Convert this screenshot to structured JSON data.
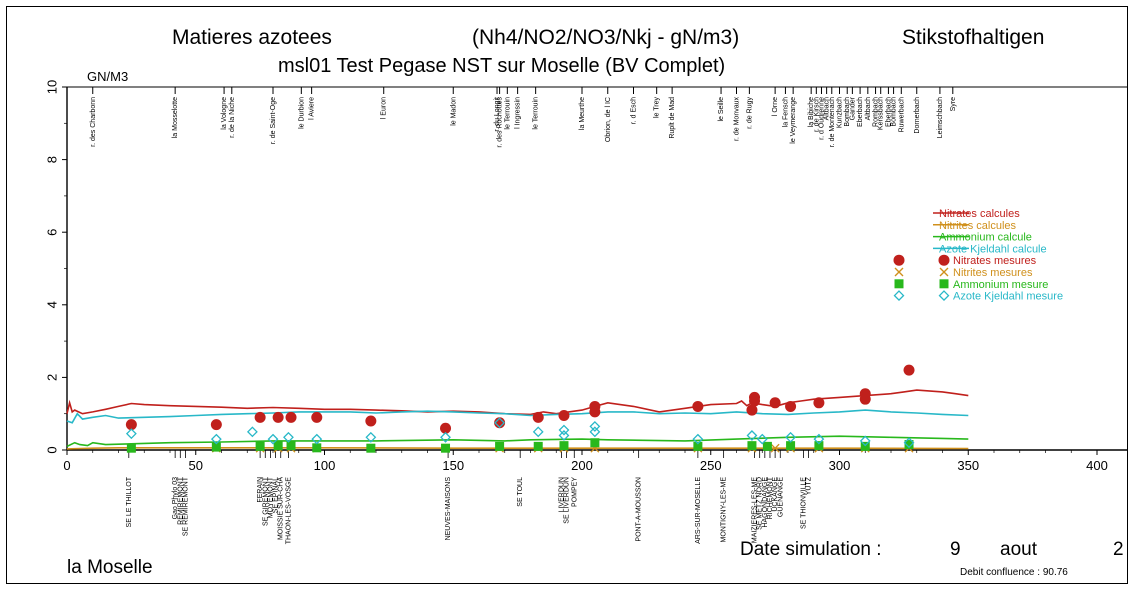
{
  "header": {
    "title_left": "Matieres azotees",
    "title_center": "(Nh4/NO2/NO3/Nkj - gN/m3)",
    "title_right": "Stikstofhaltigen",
    "subtitle": "msl01 Test Pegase NST sur Moselle (BV Complet)",
    "unit": "GN/M3"
  },
  "footer": {
    "river": "la Moselle",
    "date_label": "Date simulation :",
    "date_day": "9",
    "date_month": "aout",
    "date_year": "2",
    "debit": "Debit confluence : 90.76"
  },
  "chart_data": {
    "type": "line",
    "xlim": [
      0,
      400
    ],
    "ylim": [
      0,
      10
    ],
    "x_ticks": [
      "0",
      "50",
      "100",
      "150",
      "200",
      "250",
      "300",
      "350",
      "400"
    ],
    "y_ticks": [
      "0",
      "2",
      "4",
      "6",
      "8",
      "10"
    ],
    "tributaries": [
      {
        "x": 10,
        "label": "r. des Charbonn"
      },
      {
        "x": 42,
        "label": "la Mosselotte"
      },
      {
        "x": 61,
        "label": "la Vologne"
      },
      {
        "x": 64,
        "label": "r. de la Niche"
      },
      {
        "x": 80,
        "label": "r. de Saint-Oge"
      },
      {
        "x": 91,
        "label": "le Durbion"
      },
      {
        "x": 95,
        "label": "l Aviere"
      },
      {
        "x": 123,
        "label": "l Euron"
      },
      {
        "x": 150,
        "label": "le Madon"
      },
      {
        "x": 167,
        "label": "r. du Longit"
      },
      {
        "x": 168,
        "label": "r. des Rochottes"
      },
      {
        "x": 171,
        "label": "le Terrouin"
      },
      {
        "x": 175,
        "label": "l Ingressin"
      },
      {
        "x": 182,
        "label": "le Terrouin"
      },
      {
        "x": 200,
        "label": "la Meurthe"
      },
      {
        "x": 210,
        "label": "Obrion, de l IC"
      },
      {
        "x": 220,
        "label": "r. d Esch"
      },
      {
        "x": 229,
        "label": "le Trey"
      },
      {
        "x": 235,
        "label": "Ruplt de Mad"
      },
      {
        "x": 254,
        "label": "le Seille"
      },
      {
        "x": 260,
        "label": "r. de Monvaux"
      },
      {
        "x": 265,
        "label": "r. de Rugy"
      },
      {
        "x": 275,
        "label": "l Orne"
      },
      {
        "x": 279,
        "label": "la Fensch"
      },
      {
        "x": 282,
        "label": "le Veymerange"
      },
      {
        "x": 289,
        "label": "la Bibiche"
      },
      {
        "x": 291,
        "label": "r. de Kirsch"
      },
      {
        "x": 293,
        "label": "r. d Oudrenne"
      },
      {
        "x": 295,
        "label": "Altbach"
      },
      {
        "x": 297,
        "label": "r. de Montenach"
      },
      {
        "x": 300,
        "label": "Kunzbach"
      },
      {
        "x": 303,
        "label": "Bombach"
      },
      {
        "x": 305,
        "label": "Gander"
      },
      {
        "x": 308,
        "label": "Eberbach"
      },
      {
        "x": 311,
        "label": "Altbach"
      },
      {
        "x": 314,
        "label": "Rombach"
      },
      {
        "x": 316,
        "label": "Kerssbach"
      },
      {
        "x": 319,
        "label": "Eberbach"
      },
      {
        "x": 321,
        "label": "Bombach"
      },
      {
        "x": 324,
        "label": "Ruwerbach"
      },
      {
        "x": 330,
        "label": "Dornerbach"
      },
      {
        "x": 339,
        "label": "Leimschbach"
      },
      {
        "x": 344,
        "label": "Syre"
      }
    ],
    "stations": [
      {
        "x": 24,
        "label": "SE LE THILLOT"
      },
      {
        "x": 42,
        "label": "Gao Phylo 03"
      },
      {
        "x": 44,
        "label": "REMIREMONT"
      },
      {
        "x": 46,
        "label": "SE REMIREMONT"
      },
      {
        "x": 75,
        "label": "FERAIN"
      },
      {
        "x": 77,
        "label": "SE GIREMONT"
      },
      {
        "x": 79,
        "label": "MOYEMONT"
      },
      {
        "x": 81,
        "label": "SE EPINAL"
      },
      {
        "x": 83,
        "label": "MOISSIE SUR-CHA"
      },
      {
        "x": 86,
        "label": "THAON-LES-VOSGE"
      },
      {
        "x": 148,
        "label": "NEUVES-MAISONS"
      },
      {
        "x": 176,
        "label": "SE TOUL"
      },
      {
        "x": 192,
        "label": "LIVERDUN"
      },
      {
        "x": 194,
        "label": "SE LIVERDUN"
      },
      {
        "x": 197,
        "label": "POMPEY"
      },
      {
        "x": 222,
        "label": "PONT-A-MOUSSON"
      },
      {
        "x": 245,
        "label": "ARS-SUR-MOSELLE"
      },
      {
        "x": 255,
        "label": "MONTIGNY-LES-ME"
      },
      {
        "x": 267,
        "label": "MAIZIERES-LES-ME"
      },
      {
        "x": 269,
        "label": "SE METZ NORD"
      },
      {
        "x": 271,
        "label": "HAGONDANGE"
      },
      {
        "x": 273,
        "label": "RICHEMONT"
      },
      {
        "x": 275,
        "label": "UCKANGE"
      },
      {
        "x": 277,
        "label": "GUENANGE"
      },
      {
        "x": 286,
        "label": "SE THIONVILLE"
      },
      {
        "x": 288,
        "label": "YUTZ"
      }
    ],
    "series": [
      {
        "name": "Nitrates calcules",
        "color": "#c0201c",
        "x": [
          0,
          1,
          2,
          3,
          6,
          10,
          15,
          20,
          25,
          30,
          40,
          50,
          60,
          70,
          80,
          90,
          100,
          110,
          120,
          130,
          140,
          150,
          160,
          170,
          180,
          185,
          190,
          200,
          205,
          210,
          220,
          230,
          240,
          250,
          260,
          262,
          264,
          266,
          270,
          275,
          280,
          285,
          290,
          300,
          310,
          320,
          325,
          330,
          340,
          345,
          350
        ],
        "y": [
          1.0,
          1.3,
          1.05,
          1.1,
          1.0,
          1.05,
          1.12,
          1.2,
          1.28,
          1.25,
          1.22,
          1.2,
          1.18,
          1.15,
          1.17,
          1.15,
          1.12,
          1.12,
          1.1,
          1.08,
          1.05,
          1.07,
          1.05,
          1.0,
          0.98,
          1.05,
          1.0,
          1.1,
          1.2,
          1.3,
          1.2,
          1.05,
          1.15,
          1.25,
          1.28,
          1.35,
          1.22,
          1.3,
          1.25,
          1.2,
          1.3,
          1.35,
          1.4,
          1.45,
          1.5,
          1.55,
          1.6,
          1.65,
          1.6,
          1.55,
          1.5
        ]
      },
      {
        "name": "Nitrites calcules",
        "color": "#d0901c",
        "x": [
          0,
          5,
          10,
          20,
          50,
          100,
          150,
          200,
          250,
          300,
          350
        ],
        "y": [
          0.03,
          0.04,
          0.05,
          0.06,
          0.06,
          0.06,
          0.05,
          0.05,
          0.05,
          0.05,
          0.04
        ]
      },
      {
        "name": "Ammonium calcule",
        "color": "#28b81c",
        "x": [
          0,
          3,
          5,
          8,
          10,
          15,
          20,
          40,
          60,
          80,
          100,
          120,
          150,
          170,
          180,
          200,
          210,
          240,
          260,
          280,
          300,
          320,
          340,
          350
        ],
        "y": [
          0.1,
          0.2,
          0.15,
          0.12,
          0.2,
          0.15,
          0.16,
          0.2,
          0.22,
          0.25,
          0.25,
          0.25,
          0.28,
          0.25,
          0.28,
          0.3,
          0.28,
          0.25,
          0.3,
          0.35,
          0.38,
          0.35,
          0.32,
          0.3
        ]
      },
      {
        "name": "Azote Kjeldahl calcule",
        "color": "#28b8c8",
        "x": [
          0,
          2,
          4,
          6,
          10,
          15,
          20,
          30,
          40,
          50,
          60,
          70,
          80,
          90,
          100,
          110,
          120,
          130,
          140,
          150,
          160,
          170,
          180,
          190,
          200,
          210,
          220,
          230,
          240,
          250,
          260,
          270,
          280,
          290,
          300,
          310,
          320,
          330,
          340,
          350
        ],
        "y": [
          0.8,
          0.75,
          1.0,
          0.85,
          0.9,
          0.95,
          0.88,
          0.9,
          0.92,
          0.95,
          0.98,
          1.0,
          1.02,
          1.05,
          1.05,
          1.05,
          1.02,
          1.05,
          1.07,
          1.05,
          1.02,
          1.0,
          0.95,
          0.98,
          1.0,
          1.05,
          1.05,
          1.0,
          1.02,
          1.0,
          1.05,
          1.0,
          0.98,
          1.02,
          1.05,
          1.1,
          1.05,
          1.02,
          0.98,
          0.95
        ]
      }
    ],
    "measures": [
      {
        "name": "Nitrates mesures",
        "color": "#c0201c",
        "marker": "circle",
        "points": [
          [
            25,
            0.7
          ],
          [
            58,
            0.7
          ],
          [
            75,
            0.9
          ],
          [
            82,
            0.9
          ],
          [
            87,
            0.9
          ],
          [
            97,
            0.9
          ],
          [
            118,
            0.8
          ],
          [
            147,
            0.6
          ],
          [
            168,
            0.75
          ],
          [
            183,
            0.9
          ],
          [
            193,
            0.95
          ],
          [
            205,
            1.2
          ],
          [
            205,
            1.05
          ],
          [
            245,
            1.2
          ],
          [
            266,
            1.1
          ],
          [
            267,
            1.35
          ],
          [
            267,
            1.45
          ],
          [
            275,
            1.3
          ],
          [
            281,
            1.2
          ],
          [
            292,
            1.3
          ],
          [
            310,
            1.4
          ],
          [
            310,
            1.55
          ],
          [
            327,
            2.2
          ]
        ]
      },
      {
        "name": "Nitrites mesures",
        "color": "#d0901c",
        "marker": "x",
        "points": [
          [
            25,
            0.05
          ],
          [
            58,
            0.05
          ],
          [
            75,
            0.05
          ],
          [
            82,
            0.05
          ],
          [
            87,
            0.05
          ],
          [
            97,
            0.05
          ],
          [
            118,
            0.05
          ],
          [
            147,
            0.05
          ],
          [
            168,
            0.05
          ],
          [
            183,
            0.05
          ],
          [
            193,
            0.05
          ],
          [
            205,
            0.05
          ],
          [
            245,
            0.05
          ],
          [
            266,
            0.05
          ],
          [
            275,
            0.05
          ],
          [
            281,
            0.05
          ],
          [
            292,
            0.05
          ],
          [
            310,
            0.05
          ],
          [
            327,
            0.05
          ]
        ]
      },
      {
        "name": "Ammonium mesure",
        "color": "#28b81c",
        "marker": "square",
        "points": [
          [
            25,
            0.05
          ],
          [
            58,
            0.08
          ],
          [
            75,
            0.1
          ],
          [
            82,
            0.12
          ],
          [
            87,
            0.12
          ],
          [
            97,
            0.06
          ],
          [
            118,
            0.05
          ],
          [
            147,
            0.05
          ],
          [
            168,
            0.1
          ],
          [
            183,
            0.1
          ],
          [
            193,
            0.12
          ],
          [
            205,
            0.2
          ],
          [
            245,
            0.1
          ],
          [
            266,
            0.12
          ],
          [
            272,
            0.1
          ],
          [
            281,
            0.12
          ],
          [
            292,
            0.12
          ],
          [
            310,
            0.1
          ],
          [
            327,
            0.15
          ]
        ]
      },
      {
        "name": "Azote Kjeldahl mesure",
        "color": "#28b8c8",
        "marker": "diamond",
        "points": [
          [
            25,
            0.45
          ],
          [
            58,
            0.3
          ],
          [
            72,
            0.5
          ],
          [
            80,
            0.3
          ],
          [
            86,
            0.35
          ],
          [
            97,
            0.3
          ],
          [
            118,
            0.35
          ],
          [
            147,
            0.35
          ],
          [
            168,
            0.75
          ],
          [
            183,
            0.5
          ],
          [
            193,
            0.55
          ],
          [
            193,
            0.4
          ],
          [
            205,
            0.65
          ],
          [
            205,
            0.5
          ],
          [
            245,
            0.3
          ],
          [
            266,
            0.4
          ],
          [
            270,
            0.3
          ],
          [
            281,
            0.35
          ],
          [
            292,
            0.3
          ],
          [
            310,
            0.25
          ],
          [
            327,
            0.2
          ]
        ]
      }
    ],
    "legend": [
      {
        "label": "Nitrates calcules",
        "color": "#c0201c",
        "marker": "line"
      },
      {
        "label": "Nitrites calcules",
        "color": "#d0901c",
        "marker": "line"
      },
      {
        "label": "Ammonium calcule",
        "color": "#28b81c",
        "marker": "line"
      },
      {
        "label": "Azote Kjeldahl calcule",
        "color": "#28b8c8",
        "marker": "line"
      },
      {
        "label": "Nitrates mesures",
        "color": "#c0201c",
        "marker": "circle"
      },
      {
        "label": "Nitrites mesures",
        "color": "#d0901c",
        "marker": "x"
      },
      {
        "label": "Ammonium mesure",
        "color": "#28b81c",
        "marker": "square"
      },
      {
        "label": "Azote Kjeldahl mesure",
        "color": "#28b8c8",
        "marker": "diamond"
      }
    ],
    "legend_position": "right"
  }
}
